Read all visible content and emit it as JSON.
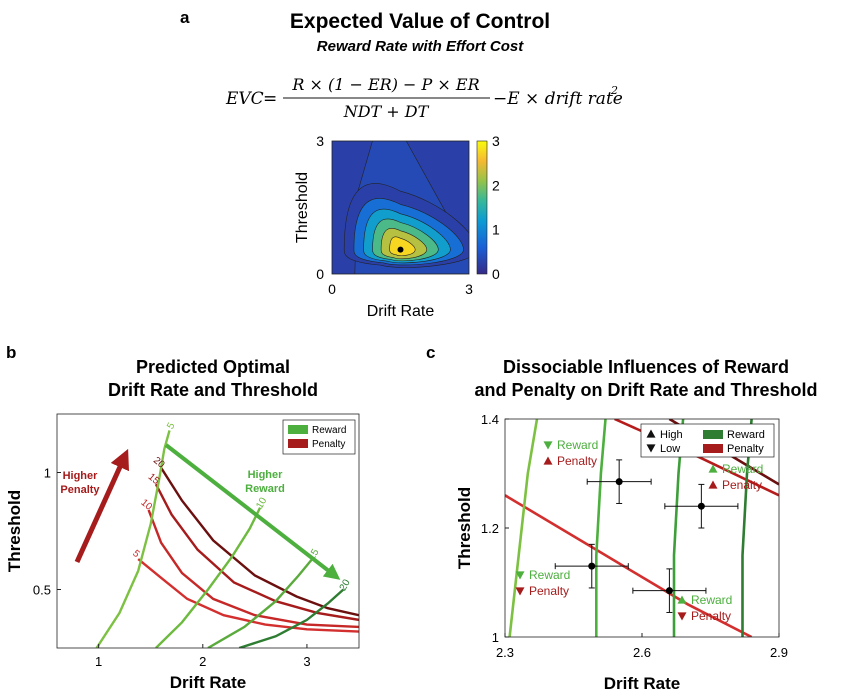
{
  "panel_a": {
    "letter": "a",
    "title": "Expected Value of Control",
    "subtitle": "Reward Rate with Effort Cost",
    "formula": {
      "lhs": "EVC",
      "numerator": "R × (1 − ER) − P × ER",
      "denominator": "NDT + DT",
      "tail": "−E × drift rate",
      "exponent": "2"
    }
  },
  "panel_b": {
    "letter": "b",
    "title_line1": "Predicted Optimal",
    "title_line2": "Drift Rate and Threshold"
  },
  "panel_c": {
    "letter": "c",
    "title_line1": "Dissociable Influences of Reward",
    "title_line2": "and Penalty on Drift Rate and Threshold"
  },
  "colors": {
    "reward_light": "#7dc142",
    "reward_mid": "#4caf3e",
    "reward_dark": "#2e7d32",
    "penalty_light": "#d32f2f",
    "penalty_mid": "#a61b1b",
    "penalty_dark": "#5c0b0b",
    "heat_low": "#2c2c8c",
    "heat_high": "#fde725"
  },
  "chart_data": [
    {
      "id": "heatmap",
      "type": "heatmap",
      "xlabel": "Drift Rate",
      "ylabel": "Threshold",
      "xlim": [
        0,
        3
      ],
      "ylim": [
        0,
        3
      ],
      "x_ticks": [
        "0",
        "3"
      ],
      "y_ticks": [
        "0",
        "3"
      ],
      "colorbar_ticks": [
        "0",
        "1",
        "2",
        "3"
      ],
      "colorbar_range": [
        0,
        3
      ],
      "optimum": {
        "x": 1.5,
        "y": 0.55
      },
      "levels": [
        0.25,
        0.75,
        1.25,
        1.75,
        2.25,
        2.75
      ]
    },
    {
      "id": "optimal-curves",
      "type": "line",
      "xlabel": "Drift Rate",
      "ylabel": "Threshold",
      "xlim": [
        0.6,
        3.5
      ],
      "ylim": [
        0.25,
        1.25
      ],
      "x_ticks": [
        "1",
        "2",
        "3"
      ],
      "y_ticks": [
        "0.5",
        "1"
      ],
      "legend": [
        {
          "label": "Reward",
          "color": "#4caf3e"
        },
        {
          "label": "Penalty",
          "color": "#a61b1b"
        }
      ],
      "arrows": [
        {
          "label_line1": "Higher",
          "label_line2": "Penalty"
        },
        {
          "label_line1": "Higher",
          "label_line2": "Reward"
        }
      ],
      "reward_series": [
        {
          "label": "5",
          "color": "#7dc142",
          "x": [
            0.98,
            1.2,
            1.38,
            1.5,
            1.58,
            1.63,
            1.68
          ],
          "y": [
            0.25,
            0.4,
            0.58,
            0.78,
            0.97,
            1.1,
            1.18
          ]
        },
        {
          "label": "10",
          "color": "#6dba3f",
          "x": [
            1.55,
            1.8,
            2.05,
            2.28,
            2.45,
            2.55
          ],
          "y": [
            0.25,
            0.36,
            0.5,
            0.64,
            0.76,
            0.85
          ]
        },
        {
          "label": "15",
          "color": "#5aaa3c",
          "x": [
            2.05,
            2.4,
            2.7,
            2.92,
            3.05
          ],
          "y": [
            0.25,
            0.34,
            0.45,
            0.56,
            0.63
          ]
        },
        {
          "label": "20",
          "color": "#2e7d32",
          "x": [
            2.35,
            2.7,
            3.0,
            3.2,
            3.35
          ],
          "y": [
            0.25,
            0.3,
            0.37,
            0.44,
            0.5
          ]
        }
      ],
      "penalty_series": [
        {
          "label": "5",
          "color": "#d32f2f",
          "x": [
            1.38,
            1.6,
            1.85,
            2.2,
            2.6,
            3.0,
            3.5
          ],
          "y": [
            0.63,
            0.55,
            0.46,
            0.39,
            0.35,
            0.33,
            0.32
          ]
        },
        {
          "label": "10",
          "color": "#c62828",
          "x": [
            1.48,
            1.6,
            1.8,
            2.1,
            2.5,
            3.0,
            3.5
          ],
          "y": [
            0.84,
            0.7,
            0.57,
            0.46,
            0.39,
            0.35,
            0.34
          ]
        },
        {
          "label": "15",
          "color": "#a61b1b",
          "x": [
            1.55,
            1.7,
            1.95,
            2.3,
            2.7,
            3.1,
            3.5
          ],
          "y": [
            0.95,
            0.82,
            0.67,
            0.53,
            0.45,
            0.4,
            0.37
          ]
        },
        {
          "label": "20",
          "color": "#6b0f0f",
          "x": [
            1.6,
            1.8,
            2.1,
            2.5,
            2.9,
            3.2,
            3.5
          ],
          "y": [
            1.02,
            0.88,
            0.71,
            0.56,
            0.47,
            0.42,
            0.39
          ]
        }
      ]
    },
    {
      "id": "empirical",
      "type": "scatter",
      "xlabel": "Drift Rate",
      "ylabel": "Threshold",
      "xlim": [
        2.3,
        2.9
      ],
      "ylim": [
        1.0,
        1.4
      ],
      "x_ticks": [
        "2.3",
        "2.6",
        "2.9"
      ],
      "y_ticks": [
        "1",
        "1.2",
        "1.4"
      ],
      "legend": {
        "high": "High",
        "low": "Low",
        "reward": "Reward",
        "penalty": "Penalty"
      },
      "points": [
        {
          "x": 2.55,
          "y": 1.285,
          "xerr": 0.07,
          "yerr": 0.04,
          "reward": "Low",
          "penalty": "High",
          "tag_reward": "Reward",
          "tag_penalty": "Penalty"
        },
        {
          "x": 2.73,
          "y": 1.24,
          "xerr": 0.08,
          "yerr": 0.04,
          "reward": "High",
          "penalty": "High",
          "tag_reward": "Reward",
          "tag_penalty": "Penalty"
        },
        {
          "x": 2.49,
          "y": 1.13,
          "xerr": 0.08,
          "yerr": 0.04,
          "reward": "Low",
          "penalty": "Low",
          "tag_reward": "Reward",
          "tag_penalty": "Penalty"
        },
        {
          "x": 2.66,
          "y": 1.085,
          "xerr": 0.08,
          "yerr": 0.04,
          "reward": "High",
          "penalty": "Low",
          "tag_reward": "Reward",
          "tag_penalty": "Penalty"
        }
      ],
      "reward_lines": [
        {
          "color": "#7dc142",
          "x": [
            2.31,
            2.33,
            2.35,
            2.37
          ],
          "y": [
            1.0,
            1.15,
            1.3,
            1.4
          ]
        },
        {
          "color": "#4caf3e",
          "x": [
            2.5,
            2.5,
            2.51,
            2.52
          ],
          "y": [
            1.0,
            1.15,
            1.3,
            1.4
          ]
        },
        {
          "color": "#3d9e3a",
          "x": [
            2.67,
            2.67,
            2.68,
            2.69
          ],
          "y": [
            1.0,
            1.15,
            1.3,
            1.4
          ]
        },
        {
          "color": "#2e7d32",
          "x": [
            2.82,
            2.82,
            2.83,
            2.84
          ],
          "y": [
            1.0,
            1.15,
            1.3,
            1.4
          ]
        }
      ],
      "penalty_lines": [
        {
          "color": "#d32f2f",
          "x": [
            2.3,
            2.5,
            2.7,
            2.84
          ],
          "y": [
            1.26,
            1.16,
            1.06,
            1.0
          ]
        },
        {
          "color": "#b71c1c",
          "x": [
            2.54,
            2.7,
            2.9
          ],
          "y": [
            1.4,
            1.34,
            1.26
          ]
        },
        {
          "color": "#6b0f0f",
          "x": [
            2.66,
            2.8,
            2.9
          ],
          "y": [
            1.4,
            1.33,
            1.28
          ]
        }
      ]
    }
  ]
}
